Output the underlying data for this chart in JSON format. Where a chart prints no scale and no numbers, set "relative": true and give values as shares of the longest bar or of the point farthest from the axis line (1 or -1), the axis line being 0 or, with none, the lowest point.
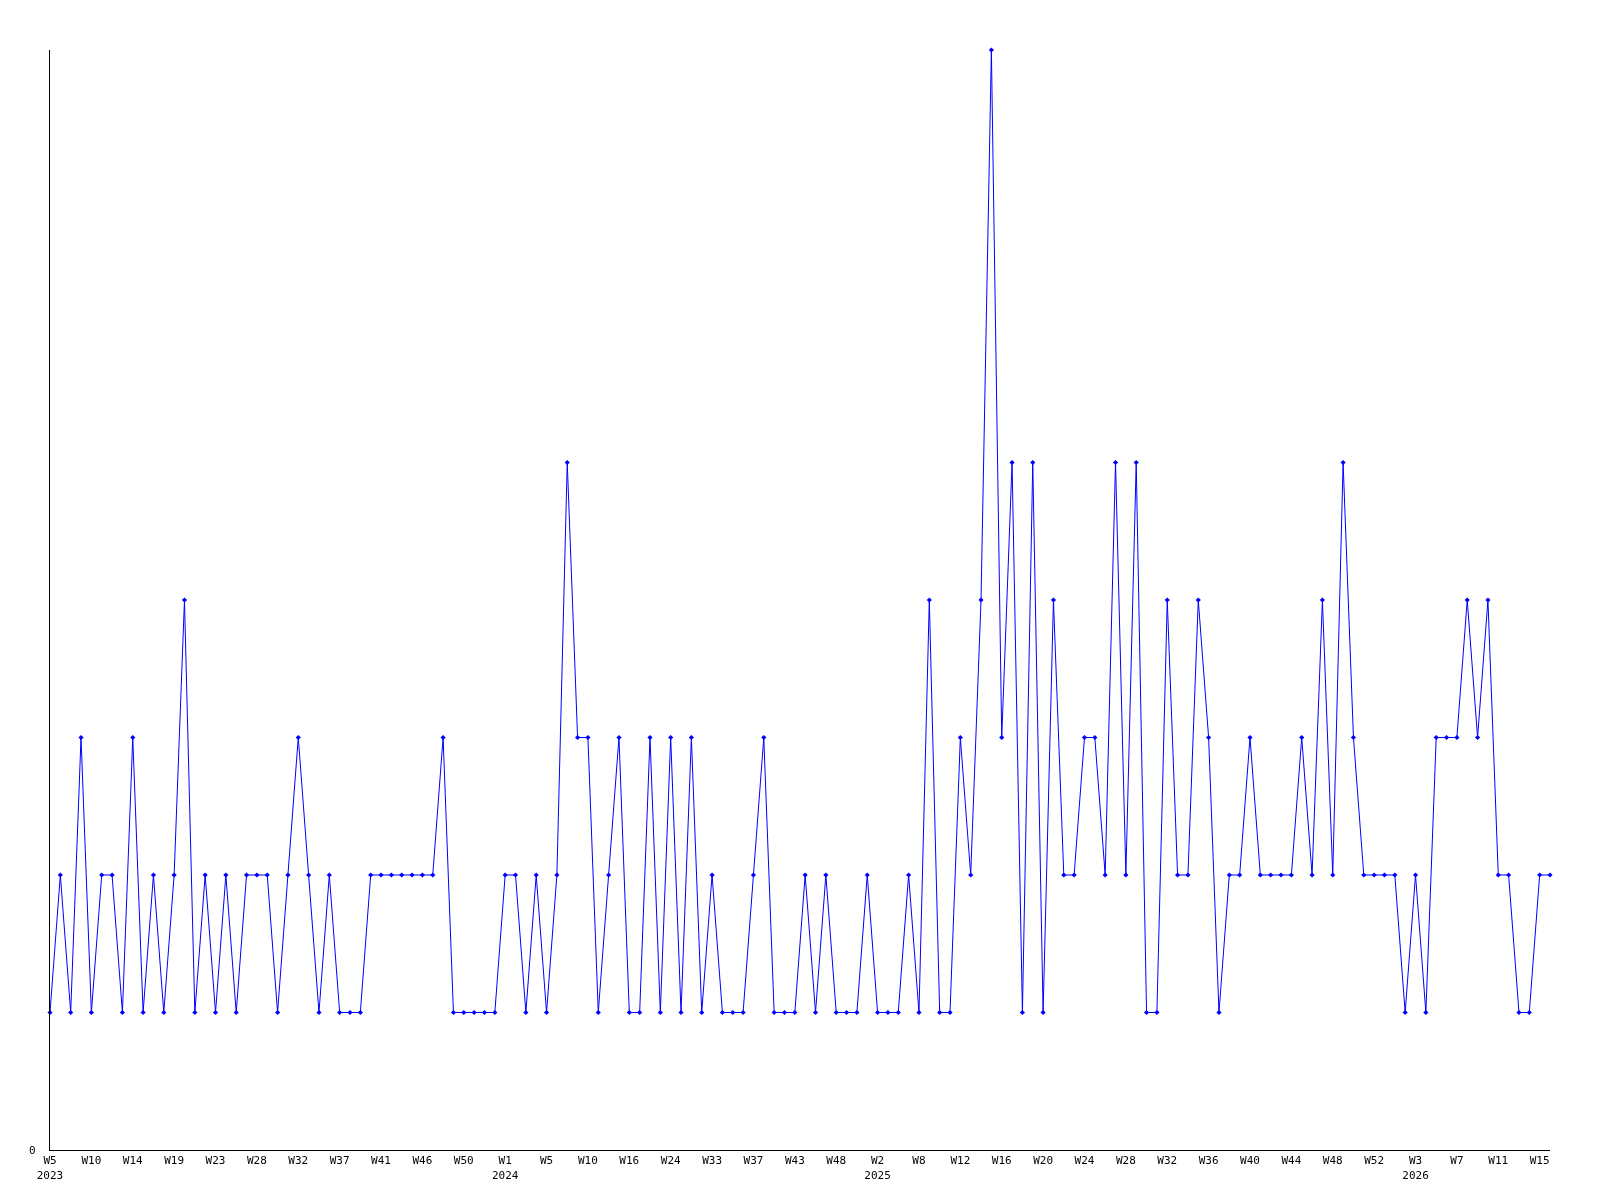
{
  "chart_data": {
    "type": "line",
    "relative": true,
    "color": "#0000ff",
    "marker": "diamond",
    "line_style": "solid",
    "annotations": [
      "0"
    ],
    "categories": [
      "W5\n2023",
      null,
      null,
      null,
      "W10",
      null,
      null,
      null,
      "W14",
      null,
      null,
      null,
      "W19",
      null,
      null,
      null,
      "W23",
      null,
      null,
      null,
      "W28",
      null,
      null,
      null,
      "W32",
      null,
      null,
      null,
      "W37",
      null,
      null,
      null,
      "W41",
      null,
      null,
      null,
      "W46",
      null,
      null,
      null,
      "W50",
      null,
      null,
      null,
      "W1\n2024",
      null,
      null,
      null,
      "W5",
      null,
      null,
      null,
      "W10",
      null,
      null,
      null,
      "W16",
      null,
      null,
      null,
      "W24",
      null,
      null,
      null,
      "W33",
      null,
      null,
      null,
      "W37",
      null,
      null,
      null,
      "W43",
      null,
      null,
      null,
      "W48",
      null,
      null,
      null,
      "W2\n2025",
      null,
      null,
      null,
      "W8",
      null,
      null,
      null,
      "W12",
      null,
      null,
      null,
      "W16",
      null,
      null,
      null,
      "W20",
      null,
      null,
      null,
      "W24",
      null,
      null,
      null,
      "W28",
      null,
      null,
      null,
      "W32",
      null,
      null,
      null,
      "W36",
      null,
      null,
      null,
      "W40",
      null,
      null,
      null,
      "W44",
      null,
      null,
      null,
      "W48",
      null,
      null,
      null,
      "W52",
      null,
      null,
      null,
      "W3\n2026",
      null,
      null,
      null,
      "W7",
      null,
      null,
      null,
      "W11",
      null,
      null,
      null,
      "W15",
      null
    ],
    "values": [
      0.125,
      0.25,
      0.125,
      0.375,
      0.125,
      0.25,
      0.25,
      0.125,
      0.375,
      0.125,
      0.25,
      0.125,
      0.25,
      0.5,
      0.125,
      0.25,
      0.125,
      0.25,
      0.125,
      0.25,
      0.25,
      0.25,
      0.125,
      0.25,
      0.375,
      0.25,
      0.125,
      0.25,
      0.125,
      0.125,
      0.125,
      0.25,
      0.25,
      0.25,
      0.25,
      0.25,
      0.25,
      0.25,
      0.375,
      0.125,
      0.125,
      0.125,
      0.125,
      0.125,
      0.25,
      0.25,
      0.125,
      0.25,
      0.125,
      0.25,
      0.625,
      0.375,
      0.375,
      0.125,
      0.25,
      0.375,
      0.125,
      0.125,
      0.375,
      0.125,
      0.375,
      0.125,
      0.375,
      0.125,
      0.25,
      0.125,
      0.125,
      0.125,
      0.25,
      0.375,
      0.125,
      0.125,
      0.125,
      0.25,
      0.125,
      0.25,
      0.125,
      0.125,
      0.125,
      0.25,
      0.125,
      0.125,
      0.125,
      0.25,
      0.125,
      0.5,
      0.125,
      0.125,
      0.375,
      0.25,
      0.5,
      1,
      0.375,
      0.625,
      0.125,
      0.625,
      0.125,
      0.5,
      0.25,
      0.25,
      0.375,
      0.375,
      0.25,
      0.625,
      0.25,
      0.625,
      0.125,
      0.125,
      0.5,
      0.25,
      0.25,
      0.5,
      0.375,
      0.125,
      0.25,
      0.25,
      0.375,
      0.25,
      0.25,
      0.25,
      0.25,
      0.375,
      0.25,
      0.5,
      0.25,
      0.625,
      0.375,
      0.25,
      0.25,
      0.25,
      0.25,
      0.125,
      0.25,
      0.125,
      0.375,
      0.375,
      0.375,
      0.5,
      0.375,
      0.5,
      0.25,
      0.25,
      0.125,
      0.125,
      0.25,
      0.25
    ]
  }
}
